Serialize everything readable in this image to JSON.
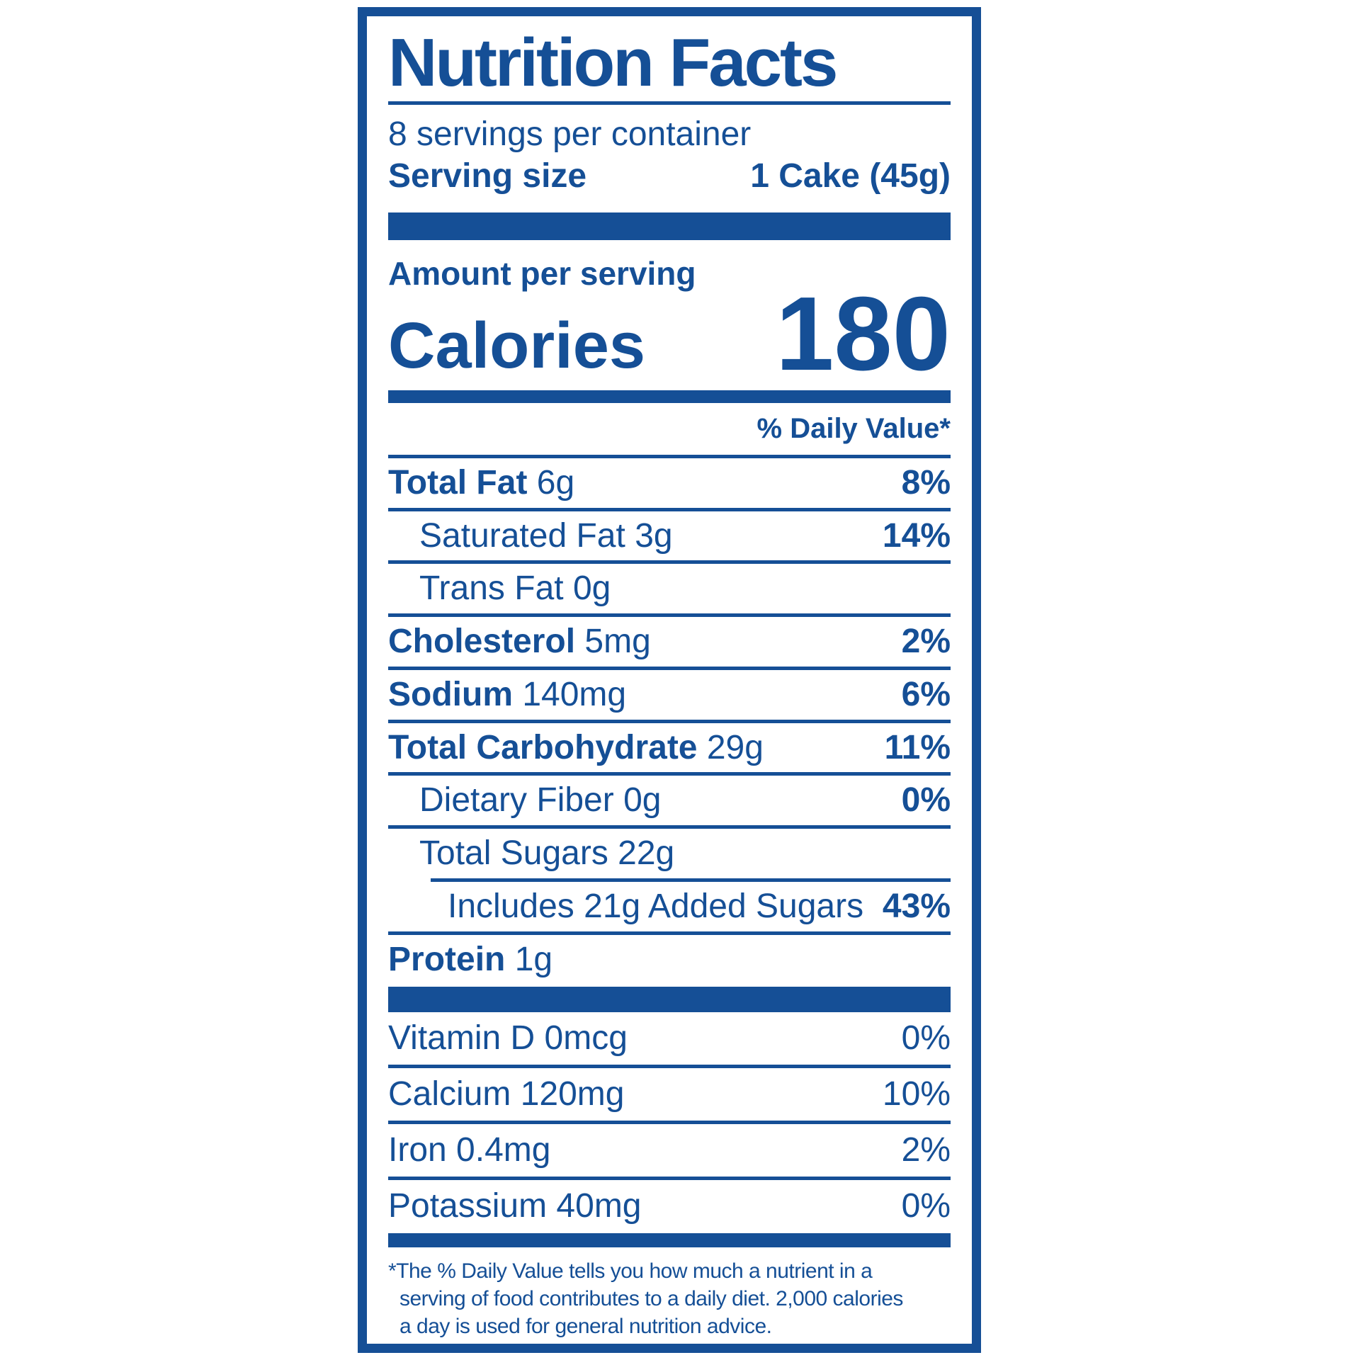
{
  "colors": {
    "blue": "#154f96",
    "background": "#ffffff"
  },
  "label": {
    "title": "Nutrition Facts",
    "servings_per_container": "8 servings per container",
    "serving_size_label": "Serving size",
    "serving_size_value": "1 Cake (45g)",
    "amount_per_serving": "Amount per serving",
    "calories_label": "Calories",
    "calories_value": "180",
    "daily_value_heading": "% Daily Value*",
    "nutrients": [
      {
        "name": "Total Fat",
        "amount": "6g",
        "dv": "8%"
      },
      {
        "name": "Saturated Fat",
        "amount": "3g",
        "dv": "14%"
      },
      {
        "name": "Trans Fat",
        "amount": "0g",
        "dv": ""
      },
      {
        "name": "Cholesterol",
        "amount": "5mg",
        "dv": "2%"
      },
      {
        "name": "Sodium",
        "amount": "140mg",
        "dv": "6%"
      },
      {
        "name": "Total Carbohydrate",
        "amount": "29g",
        "dv": "11%"
      },
      {
        "name": "Dietary Fiber",
        "amount": "0g",
        "dv": "0%"
      },
      {
        "name": "Total Sugars",
        "amount": "22g",
        "dv": ""
      },
      {
        "name": "Includes 21g Added Sugars",
        "amount": "",
        "dv": "43%"
      },
      {
        "name": "Protein",
        "amount": "1g",
        "dv": ""
      }
    ],
    "micronutrients": [
      {
        "name": "Vitamin D 0mcg",
        "dv": "0%"
      },
      {
        "name": "Calcium 120mg",
        "dv": "10%"
      },
      {
        "name": "Iron 0.4mg",
        "dv": "2%"
      },
      {
        "name": "Potassium 40mg",
        "dv": "0%"
      }
    ],
    "footnote_lines": [
      "*The % Daily Value tells you how much a nutrient in a",
      "serving of food contributes to a daily diet. 2,000 calories",
      "a day is used for general nutrition advice."
    ]
  }
}
